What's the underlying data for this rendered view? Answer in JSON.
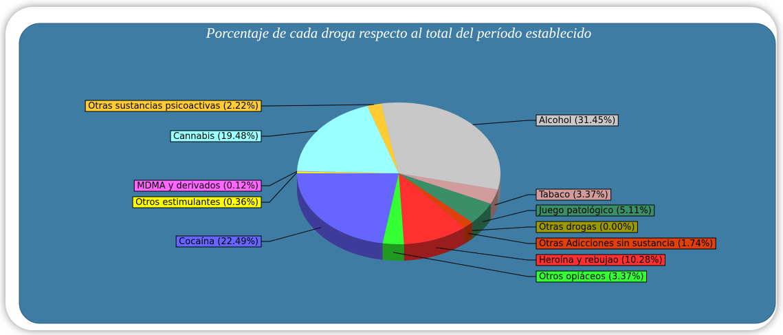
{
  "chart_data": {
    "type": "pie3d",
    "title": "Porcentaje de cada droga respecto al total del período establecido",
    "categories": [
      "Alcohol",
      "Tabaco",
      "Juego patológico",
      "Otras drogas",
      "Otras Adicciones sin sustancia",
      "Heroína y rebujao",
      "Otros opiáceos",
      "Cocaína",
      "Otros estimulantes",
      "MDMA y derivados",
      "Cannabis",
      "Otras sustancias psicoactivas"
    ],
    "values": [
      31.45,
      3.37,
      5.11,
      0.0,
      1.74,
      10.28,
      3.37,
      22.49,
      0.36,
      0.12,
      19.48,
      2.22
    ],
    "value_labels": [
      "(31.45%)",
      "(3.37%)",
      "(5.11%)",
      "(0.00%)",
      "(1.74%)",
      "(10.28%)",
      "(3.37%)",
      "(22.49%)",
      "(0.36%)",
      "(0.12%)",
      "(19.48%)",
      "(2.22%)"
    ],
    "colors": [
      "#c8c8c8",
      "#d29c9c",
      "#3a8f68",
      "#9c9a00",
      "#e0400c",
      "#ff3030",
      "#33ff33",
      "#6666ff",
      "#ffff00",
      "#ff66ff",
      "#99ffff",
      "#ffcc33"
    ]
  }
}
